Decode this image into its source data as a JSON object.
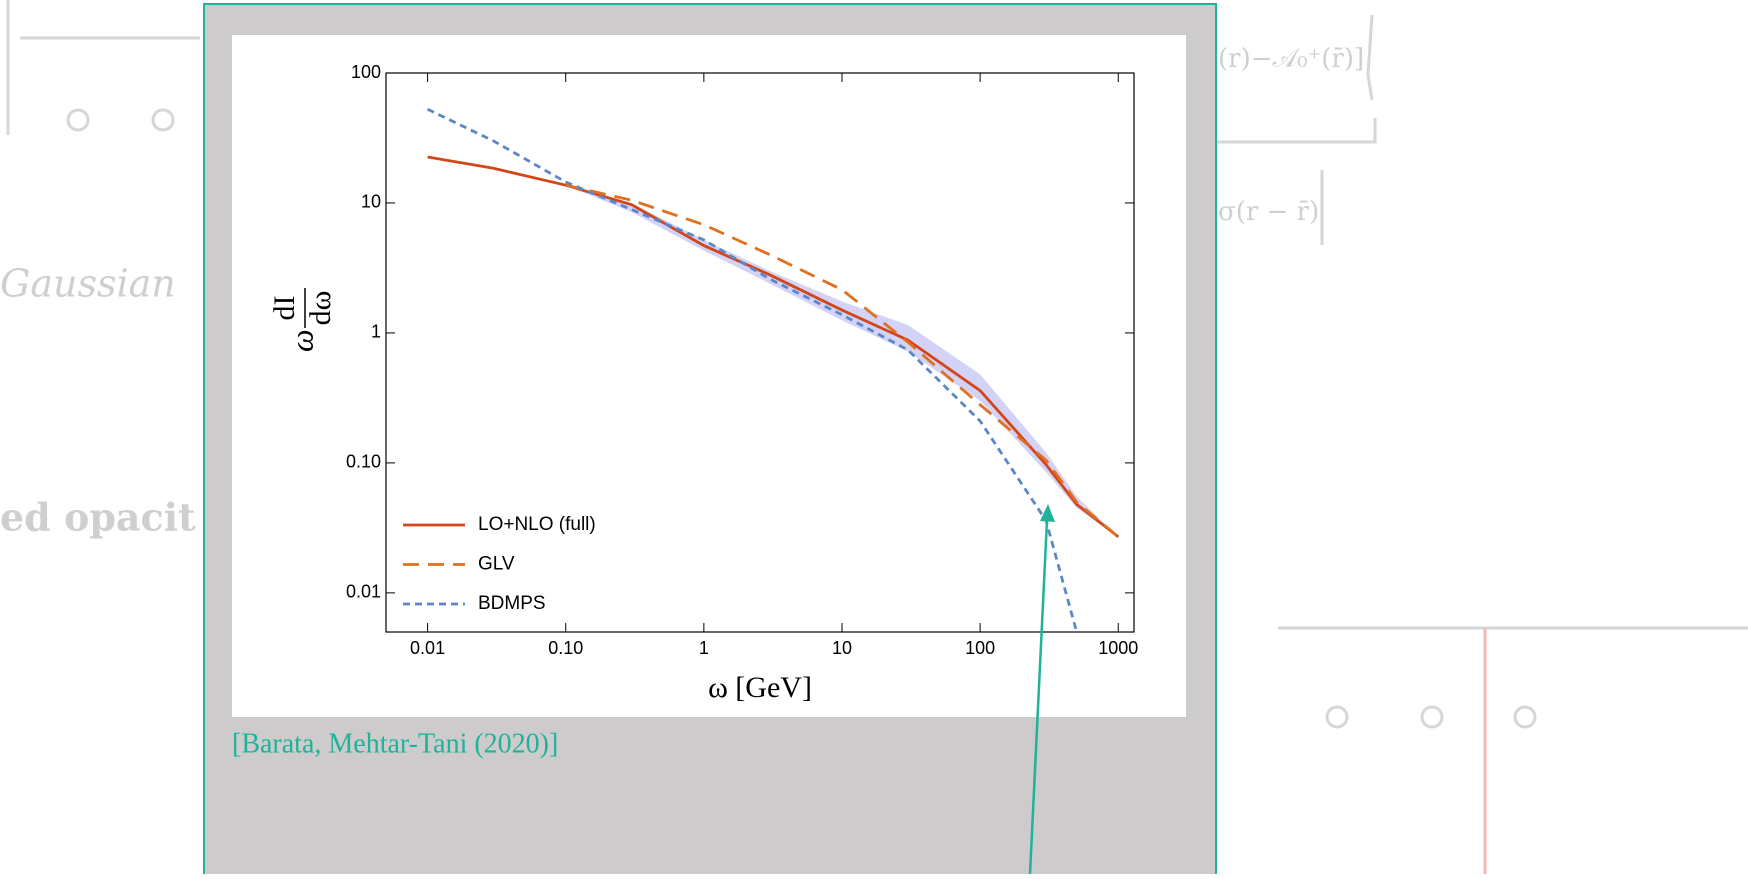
{
  "background": {
    "fragments": [
      "Gaussian",
      "ed opacit",
      "(r)−𝒜₀⁺(r̄)]",
      "σ(r − r̄)"
    ]
  },
  "citation": "[Barata, Mehtar-Tani (2020)]",
  "chart_data": {
    "type": "line",
    "x_label": "ω [GeV]",
    "y_label_prefix": "ω",
    "y_label_num": "dI",
    "y_label_den": "dω",
    "log_x": true,
    "log_y": true,
    "legend": "lower left",
    "x": [
      0.01,
      0.03,
      0.1,
      0.3,
      1,
      3,
      10,
      30,
      100,
      300,
      500,
      1000
    ],
    "series": [
      {
        "name": "LO+NLO (full)",
        "color": "#d4461a",
        "line_style": "solid",
        "values": [
          22.6,
          18.5,
          13.7,
          9.7,
          4.7,
          2.8,
          1.5,
          0.88,
          0.36,
          0.097,
          0.048,
          0.027
        ]
      },
      {
        "name": "GLV",
        "color": "#e07020",
        "line_style": "dashed",
        "values": [
          null,
          null,
          13.7,
          10.5,
          6.8,
          4.0,
          2.15,
          0.85,
          0.28,
          0.105,
          0.05,
          0.027
        ]
      },
      {
        "name": "BDMPS",
        "color": "#5b87c8",
        "line_style": "dotted",
        "values": [
          52.6,
          30,
          14.5,
          8.9,
          5.2,
          2.6,
          1.38,
          0.74,
          0.21,
          0.036,
          0.005,
          null
        ]
      }
    ],
    "band": {
      "color": "#c7c8f5",
      "lower": [
        null,
        null,
        13.7,
        8.5,
        4.3,
        2.4,
        1.25,
        0.72,
        0.3,
        0.085,
        0.045,
        0.027
      ],
      "upper": [
        null,
        null,
        13.7,
        10,
        5.2,
        3.0,
        1.75,
        1.15,
        0.48,
        0.12,
        0.055,
        0.027
      ]
    },
    "xlim": [
      0.005,
      1300
    ],
    "ylim": [
      0.005,
      100
    ],
    "xticks": [
      0.01,
      {
        "value": 0.1,
        "label": "0.10"
      },
      1,
      10,
      100,
      1000
    ],
    "yticks": [
      0.01,
      {
        "value": 0.1,
        "label": "0.10"
      },
      1,
      10,
      100
    ]
  }
}
